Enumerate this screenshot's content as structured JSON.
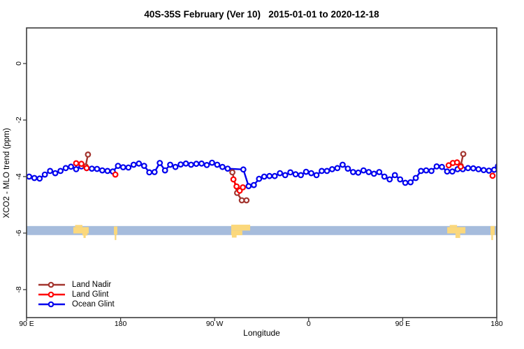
{
  "chart_data": {
    "type": "line",
    "title": "40S-35S February (Ver 10)   2015-01-01 to 2020-12-18",
    "xlabel": "Longitude",
    "ylabel": "XCO2 - MLO trend (ppm)",
    "xlim": [
      90,
      540
    ],
    "ylim": [
      -8.99,
      1.26
    ],
    "grid": false,
    "x_ticks": [
      {
        "value": 90,
        "label": "90 E"
      },
      {
        "value": 180,
        "label": "180"
      },
      {
        "value": 270,
        "label": "90 W"
      },
      {
        "value": 360,
        "label": "0"
      },
      {
        "value": 450,
        "label": "90 E"
      },
      {
        "value": 540,
        "label": "180"
      }
    ],
    "y_ticks": [
      {
        "value": 0,
        "label": "0"
      },
      {
        "value": -2,
        "label": "-2"
      },
      {
        "value": -4,
        "label": "-4"
      },
      {
        "value": -6,
        "label": "-6"
      },
      {
        "value": -8,
        "label": "-8"
      }
    ],
    "map_band": {
      "description": "latitude-band world-map strip, ocean blue with land patches",
      "y_top": -5.75,
      "y_bottom": -6.07,
      "ocean_color": "#a6bcdc",
      "land_color": "#fbd87c",
      "land_patches": [
        {
          "name": "australia-west-copy",
          "rects": [
            [
              134.8,
              149.5,
              0.12,
              0.82
            ],
            [
              136.5,
              143.5,
              -0.12,
              0.12
            ],
            [
              143.5,
              148.3,
              0.82,
              1.05
            ],
            [
              144.5,
              146.6,
              1.05,
              1.32
            ]
          ]
        },
        {
          "name": "new-zealand-west-copy",
          "rects": [
            [
              173.6,
              176.9,
              0.05,
              0.95
            ],
            [
              174.4,
              175.9,
              0.95,
              1.55
            ]
          ]
        },
        {
          "name": "south-america",
          "rects": [
            [
              285.9,
              304.0,
              -0.15,
              0.5
            ],
            [
              285.9,
              296.5,
              0.5,
              1.02
            ],
            [
              286.5,
              291.0,
              1.02,
              1.28
            ]
          ]
        },
        {
          "name": "australia-east-copy",
          "rects": [
            [
              492.6,
              510.0,
              0.12,
              0.82
            ],
            [
              495.0,
              502.0,
              -0.12,
              0.12
            ],
            [
              500.5,
              505.0,
              0.82,
              1.32
            ]
          ]
        },
        {
          "name": "new-zealand-east-copy",
          "rects": [
            [
              534.0,
              538.0,
              0.0,
              1.0
            ],
            [
              534.8,
              536.4,
              1.0,
              1.55
            ]
          ]
        },
        {
          "name": "edge-sliver",
          "rects": [
            [
              539.4,
              540.3,
              0.1,
              1.25
            ]
          ]
        }
      ]
    },
    "series": [
      {
        "name": "Ocean Glint",
        "color": "#0000ee",
        "marker": "open-circle",
        "segments": [
          [
            [
              92.5,
              -4.0
            ],
            [
              97.5,
              -4.05
            ],
            [
              102.5,
              -4.07
            ],
            [
              107.5,
              -3.93
            ],
            [
              112.5,
              -3.8
            ],
            [
              117.5,
              -3.88
            ],
            [
              122.5,
              -3.8
            ],
            [
              127.5,
              -3.7
            ],
            [
              132.5,
              -3.65
            ],
            [
              137.5,
              -3.74
            ],
            [
              142.5,
              -3.64
            ],
            [
              147.5,
              -3.7
            ],
            [
              152.5,
              -3.72
            ],
            [
              157.5,
              -3.73
            ],
            [
              162.5,
              -3.78
            ],
            [
              167.5,
              -3.8
            ],
            [
              172.5,
              -3.82
            ],
            [
              177.5,
              -3.62
            ],
            [
              182.5,
              -3.67
            ],
            [
              187.5,
              -3.68
            ],
            [
              192.5,
              -3.58
            ],
            [
              197.5,
              -3.54
            ],
            [
              202.5,
              -3.62
            ],
            [
              207.5,
              -3.85
            ],
            [
              212.5,
              -3.84
            ],
            [
              217.5,
              -3.52
            ],
            [
              222.5,
              -3.78
            ],
            [
              227.5,
              -3.58
            ],
            [
              232.5,
              -3.66
            ],
            [
              237.5,
              -3.57
            ],
            [
              242.5,
              -3.54
            ],
            [
              247.5,
              -3.58
            ],
            [
              252.5,
              -3.55
            ],
            [
              257.5,
              -3.54
            ],
            [
              262.5,
              -3.59
            ],
            [
              267.5,
              -3.51
            ],
            [
              272.5,
              -3.58
            ],
            [
              277.5,
              -3.66
            ],
            [
              282.5,
              -3.72
            ],
            [
              297.5,
              -3.75
            ],
            [
              302.5,
              -4.34
            ],
            [
              307.5,
              -4.3
            ],
            [
              312.5,
              -4.08
            ],
            [
              317.5,
              -4.0
            ],
            [
              322.5,
              -3.98
            ],
            [
              327.5,
              -3.98
            ],
            [
              332.5,
              -3.88
            ],
            [
              337.5,
              -3.95
            ],
            [
              342.5,
              -3.85
            ],
            [
              347.5,
              -3.92
            ],
            [
              352.5,
              -3.95
            ],
            [
              357.5,
              -3.83
            ],
            [
              362.5,
              -3.88
            ],
            [
              367.5,
              -3.95
            ],
            [
              372.5,
              -3.8
            ],
            [
              377.5,
              -3.8
            ],
            [
              382.5,
              -3.74
            ],
            [
              387.5,
              -3.7
            ],
            [
              392.5,
              -3.58
            ],
            [
              397.5,
              -3.72
            ],
            [
              402.5,
              -3.84
            ],
            [
              407.5,
              -3.86
            ],
            [
              412.5,
              -3.78
            ],
            [
              417.5,
              -3.84
            ],
            [
              422.5,
              -3.9
            ],
            [
              427.5,
              -3.84
            ],
            [
              432.5,
              -4.0
            ],
            [
              437.5,
              -4.1
            ],
            [
              442.5,
              -3.95
            ],
            [
              447.5,
              -4.1
            ],
            [
              452.5,
              -4.22
            ],
            [
              457.5,
              -4.2
            ],
            [
              462.5,
              -4.05
            ],
            [
              467.5,
              -3.8
            ],
            [
              472.5,
              -3.78
            ],
            [
              477.5,
              -3.8
            ],
            [
              482.5,
              -3.64
            ],
            [
              487.5,
              -3.66
            ],
            [
              492.5,
              -3.82
            ],
            [
              497.5,
              -3.82
            ],
            [
              502.5,
              -3.74
            ],
            [
              507.5,
              -3.74
            ],
            [
              512.5,
              -3.7
            ],
            [
              517.5,
              -3.71
            ],
            [
              522.5,
              -3.74
            ],
            [
              527.5,
              -3.77
            ],
            [
              532.5,
              -3.79
            ],
            [
              537.5,
              -3.76
            ],
            [
              541.2,
              -3.63
            ]
          ]
        ]
      },
      {
        "name": "Land Nadir",
        "color": "#a3352f",
        "marker": "open-circle",
        "segments": [
          [
            [
              146.5,
              -3.64
            ],
            [
              148.8,
              -3.22
            ]
          ],
          [
            [
              287.0,
              -3.85
            ],
            [
              291.5,
              -4.58
            ],
            [
              296.0,
              -4.84
            ],
            [
              300.5,
              -4.84
            ]
          ],
          [
            [
              505.5,
              -3.62
            ],
            [
              508.0,
              -3.2
            ]
          ]
        ]
      },
      {
        "name": "Land Glint",
        "color": "#ff0000",
        "marker": "open-circle",
        "segments": [
          [
            [
              137.5,
              -3.53
            ],
            [
              142.5,
              -3.55
            ],
            [
              147.5,
              -3.7
            ]
          ],
          [
            [
              175.0,
              -3.93
            ]
          ],
          [
            [
              288.0,
              -4.1
            ],
            [
              291.0,
              -4.35
            ],
            [
              294.0,
              -4.5
            ],
            [
              297.0,
              -4.38
            ]
          ],
          [
            [
              494.0,
              -3.6
            ],
            [
              498.0,
              -3.52
            ],
            [
              502.0,
              -3.5
            ],
            [
              505.5,
              -3.65
            ]
          ],
          [
            [
              536.0,
              -3.97
            ]
          ]
        ]
      }
    ],
    "legend": {
      "position": "bottom-left-inside",
      "items": [
        {
          "label": "Land Nadir",
          "color": "#a3352f"
        },
        {
          "label": "Land Glint",
          "color": "#ff0000"
        },
        {
          "label": "Ocean Glint",
          "color": "#0000ee"
        }
      ]
    },
    "frame_color": "#3c3c3c"
  }
}
